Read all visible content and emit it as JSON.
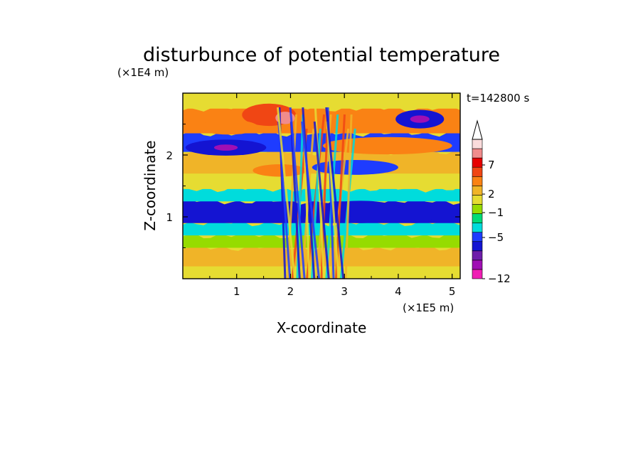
{
  "colors": {
    "levels": [
      "#f01eb4",
      "#a00fb4",
      "#6e1eaa",
      "#1414d2",
      "#1e3cff",
      "#00dcdc",
      "#00dc78",
      "#96dc00",
      "#e6dc32",
      "#f0b428",
      "#fa8214",
      "#f04614",
      "#e60000",
      "#f08c8c",
      "#fadcdc"
    ],
    "arrow_cap": "#ffffff"
  },
  "chart_data": {
    "type": "heatmap",
    "title": "disturbunce of potential temperature",
    "xlabel": "X-coordinate",
    "ylabel": "Z-coordinate",
    "x_unit": "(×1E5 m)",
    "y_unit": "(×1E4 m)",
    "time_label": "t=142800 s",
    "xlim": [
      0,
      5.15
    ],
    "ylim": [
      0,
      3.0
    ],
    "x_ticks": [
      1,
      2,
      3,
      4,
      5
    ],
    "x_tick_labels": [
      "1",
      "2",
      "3",
      "4",
      "5"
    ],
    "y_ticks": [
      1,
      2
    ],
    "y_tick_labels": [
      "1",
      "2"
    ],
    "colorbar": {
      "labels": [
        "7",
        "2",
        "−1",
        "−5",
        "−12"
      ],
      "label_levels": [
        7,
        2,
        -1,
        -5,
        -12
      ],
      "extend": "max"
    },
    "layers": [
      {
        "zmin": 0.02,
        "zmax": 0.2,
        "value": 2
      },
      {
        "zmin": 0.2,
        "zmax": 0.5,
        "value": 3
      },
      {
        "zmin": 0.5,
        "zmax": 0.7,
        "value": 1
      },
      {
        "zmin": 0.7,
        "zmax": 0.9,
        "value": -1
      },
      {
        "zmin": 0.9,
        "zmax": 1.25,
        "value": -4
      },
      {
        "zmin": 1.25,
        "zmax": 1.45,
        "value": -1
      },
      {
        "zmin": 1.45,
        "zmax": 1.7,
        "value": 2
      },
      {
        "zmin": 1.7,
        "zmax": 2.05,
        "value": 4
      },
      {
        "zmin": 2.05,
        "zmax": 2.35,
        "value": -3
      },
      {
        "zmin": 2.35,
        "zmax": 2.75,
        "value": 5
      },
      {
        "zmin": 2.75,
        "zmax": 3.0,
        "value": 2
      }
    ],
    "features": [
      {
        "x": 0.8,
        "z": 2.12,
        "rx": 0.75,
        "rz": 0.13,
        "value": -5
      },
      {
        "x": 0.8,
        "z": 2.12,
        "rx": 0.22,
        "rz": 0.05,
        "value": -9
      },
      {
        "x": 4.4,
        "z": 2.58,
        "rx": 0.45,
        "rz": 0.15,
        "value": -5
      },
      {
        "x": 4.4,
        "z": 2.58,
        "rx": 0.18,
        "rz": 0.06,
        "value": -9
      },
      {
        "x": 1.6,
        "z": 2.65,
        "rx": 0.5,
        "rz": 0.18,
        "value": 7
      },
      {
        "x": 1.9,
        "z": 2.6,
        "rx": 0.18,
        "rz": 0.1,
        "value": 9
      },
      {
        "x": 0.85,
        "z": 2.45,
        "rx": 0.55,
        "rz": 0.12,
        "value": 5
      },
      {
        "x": 3.8,
        "z": 2.15,
        "rx": 1.2,
        "rz": 0.14,
        "value": 5
      },
      {
        "x": 3.2,
        "z": 1.8,
        "rx": 0.8,
        "rz": 0.12,
        "value": -3
      },
      {
        "x": 3.3,
        "z": 1.08,
        "rx": 0.8,
        "rz": 0.18,
        "value": -5
      },
      {
        "x": 4.3,
        "z": 1.05,
        "rx": 0.4,
        "rz": 0.15,
        "value": -5
      },
      {
        "x": 1.8,
        "z": 1.75,
        "rx": 0.5,
        "rz": 0.1,
        "value": 6
      }
    ]
  }
}
